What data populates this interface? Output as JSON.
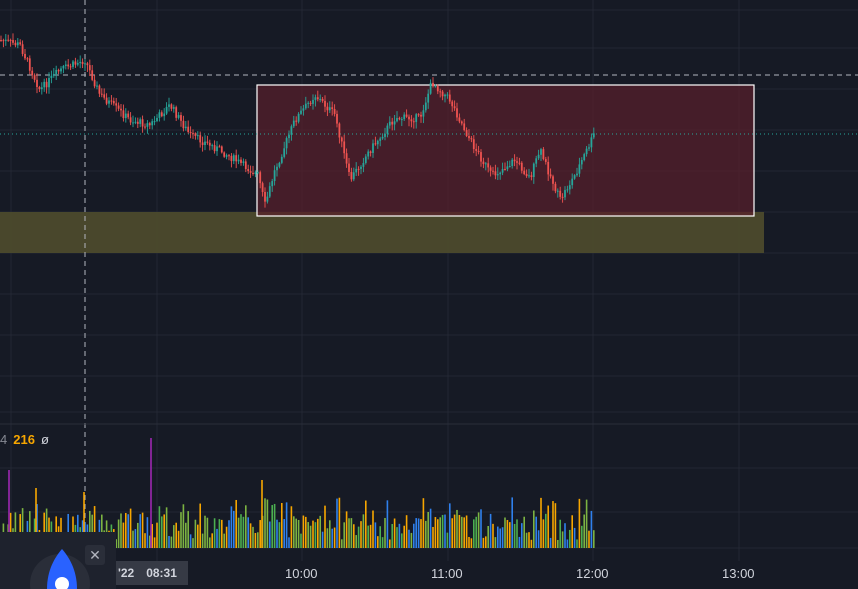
{
  "chart_data": {
    "type": "candlestick",
    "x_ticks": [
      "10:00",
      "11:00",
      "12:00",
      "13:00"
    ],
    "crosshair_time": {
      "date_fragment": "'22",
      "time": "08:31"
    },
    "volume_legend": {
      "prefix": "4",
      "value": "216",
      "icon": "ø"
    },
    "colors": {
      "up": "#26a69a",
      "down": "#ef5350",
      "grid": "#232734",
      "background": "#161a25",
      "range_box_fill": "#5a1f2b",
      "range_box_border": "#ffffff",
      "zone_fill": "#4c4a2c",
      "vol_orange": "#f7a600",
      "vol_green": "#7cb342",
      "vol_blue": "#2f80ed",
      "vol_purple": "#9c27b0"
    }
  },
  "ui": {
    "close_label": "✕"
  }
}
